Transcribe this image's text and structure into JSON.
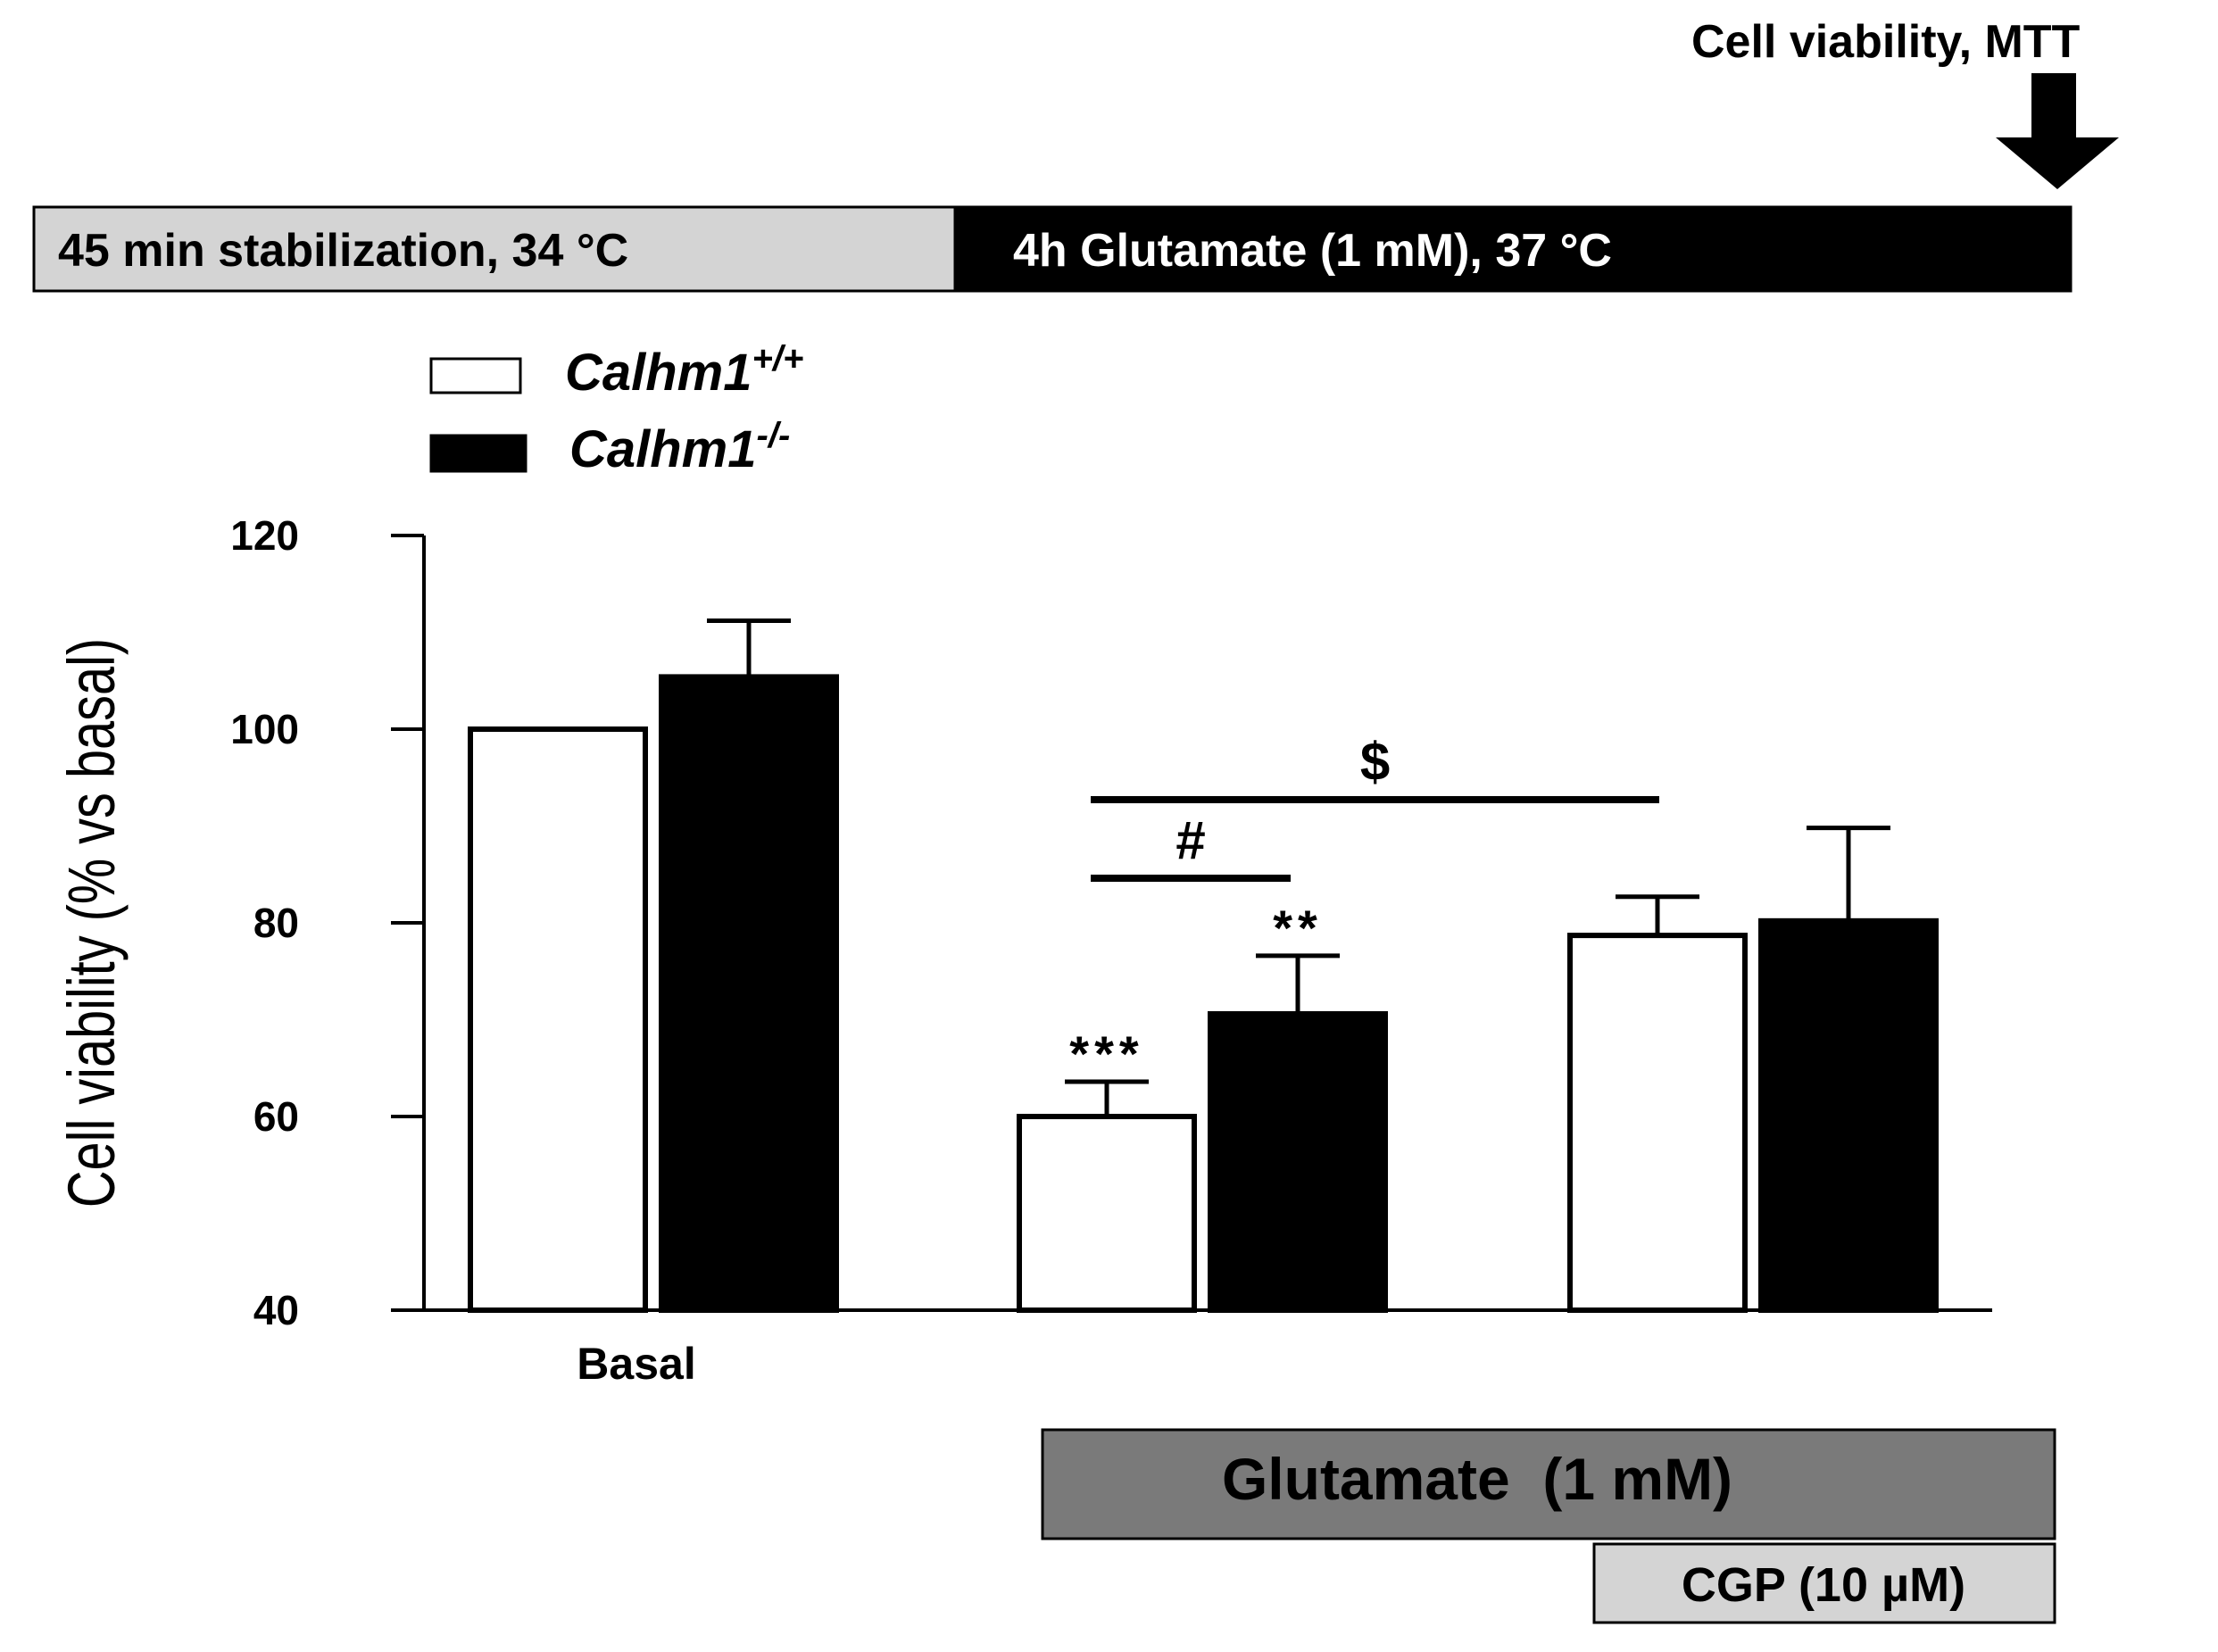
{
  "protocol": {
    "stage1_label": "45 min stabilization, 34 °C",
    "stage2_label": "4h Glutamate (1 mM), 37 °C",
    "readout_label": "Cell viability, MTT",
    "stage1_color": "#d4d4d4",
    "stage2_color": "#000000"
  },
  "legend": {
    "items": [
      {
        "name": "Calhm1",
        "sup": "+/+",
        "fill": "#ffffff"
      },
      {
        "name": "Calhm1",
        "sup": "-/-",
        "fill": "#000000"
      }
    ]
  },
  "chart_data": {
    "type": "bar",
    "ylabel": "Cell viability (% vs basal)",
    "ylim": [
      40,
      120
    ],
    "yticks": [
      40,
      60,
      80,
      100,
      120
    ],
    "categories": [
      "Basal",
      "Glutamate",
      "Glutamate + CGP"
    ],
    "category_label": "Basal",
    "series": [
      {
        "name": "Calhm1+/+",
        "fill": "#ffffff",
        "values": [
          100,
          60,
          78.7
        ],
        "errors": [
          0,
          3.6,
          4.0
        ]
      },
      {
        "name": "Calhm1-/-",
        "fill": "#000000",
        "values": [
          105.4,
          70.6,
          80.2
        ],
        "errors": [
          5.8,
          6.0,
          9.6
        ]
      }
    ],
    "significance": [
      {
        "symbol": "***",
        "group": 1,
        "series": 0
      },
      {
        "symbol": "**",
        "group": 1,
        "series": 1
      }
    ],
    "brackets": [
      {
        "symbol": "#",
        "from": [
          1,
          0
        ],
        "to": [
          1,
          1
        ]
      },
      {
        "symbol": "$",
        "from": [
          1,
          0
        ],
        "to": [
          2,
          0
        ]
      }
    ]
  },
  "treatments": {
    "glutamate_label": "Glutamate  (1 mM)",
    "cgp_label": "CGP (10 µM)",
    "glutamate_color": "#7a7a7a",
    "cgp_color": "#d4d4d4"
  }
}
